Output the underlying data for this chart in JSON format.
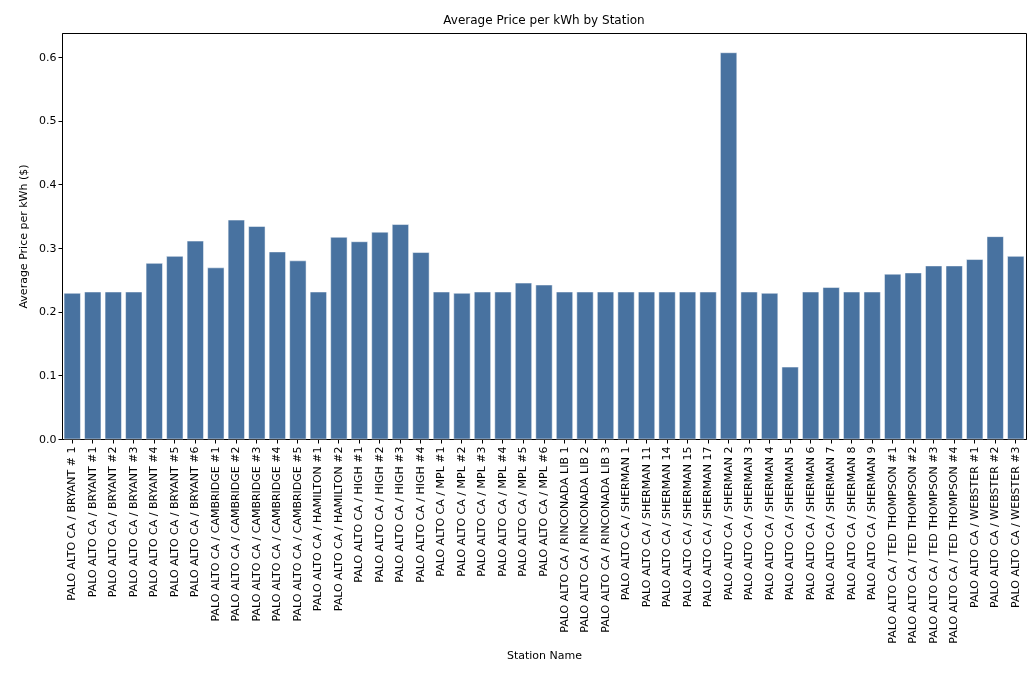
{
  "chart_data": {
    "type": "bar",
    "title": "Average Price per kWh by Station",
    "xlabel": "Station Name",
    "ylabel": "Average Price per kWh ($)",
    "categories": [
      "PALO ALTO CA / BRYANT # 1",
      "PALO ALTO CA / BRYANT #1",
      "PALO ALTO CA / BRYANT #2",
      "PALO ALTO CA / BRYANT #3",
      "PALO ALTO CA / BRYANT #4",
      "PALO ALTO CA / BRYANT #5",
      "PALO ALTO CA / BRYANT #6",
      "PALO ALTO CA / CAMBRIDGE #1",
      "PALO ALTO CA / CAMBRIDGE #2",
      "PALO ALTO CA / CAMBRIDGE #3",
      "PALO ALTO CA / CAMBRIDGE #4",
      "PALO ALTO CA / CAMBRIDGE #5",
      "PALO ALTO CA / HAMILTON #1",
      "PALO ALTO CA / HAMILTON #2",
      "PALO ALTO CA / HIGH #1",
      "PALO ALTO CA / HIGH #2",
      "PALO ALTO CA / HIGH #3",
      "PALO ALTO CA / HIGH #4",
      "PALO ALTO CA / MPL #1",
      "PALO ALTO CA / MPL #2",
      "PALO ALTO CA / MPL #3",
      "PALO ALTO CA / MPL #4",
      "PALO ALTO CA / MPL #5",
      "PALO ALTO CA / MPL #6",
      "PALO ALTO CA / RINCONADA LIB 1",
      "PALO ALTO CA / RINCONADA LIB 2",
      "PALO ALTO CA / RINCONADA LIB 3",
      "PALO ALTO CA / SHERMAN 1",
      "PALO ALTO CA / SHERMAN 11",
      "PALO ALTO CA / SHERMAN 14",
      "PALO ALTO CA / SHERMAN 15",
      "PALO ALTO CA / SHERMAN 17",
      "PALO ALTO CA / SHERMAN 2",
      "PALO ALTO CA / SHERMAN 3",
      "PALO ALTO CA / SHERMAN 4",
      "PALO ALTO CA / SHERMAN 5",
      "PALO ALTO CA / SHERMAN 6",
      "PALO ALTO CA / SHERMAN 7",
      "PALO ALTO CA / SHERMAN 8",
      "PALO ALTO CA / SHERMAN 9",
      "PALO ALTO CA / TED THOMPSON #1",
      "PALO ALTO CA / TED THOMPSON #2",
      "PALO ALTO CA / TED THOMPSON #3",
      "PALO ALTO CA / TED THOMPSON #4",
      "PALO ALTO CA / WEBSTER #1",
      "PALO ALTO CA / WEBSTER #2",
      "PALO ALTO CA / WEBSTER #3"
    ],
    "values": [
      0.229,
      0.231,
      0.231,
      0.231,
      0.276,
      0.287,
      0.311,
      0.269,
      0.344,
      0.334,
      0.294,
      0.28,
      0.231,
      0.317,
      0.31,
      0.325,
      0.337,
      0.293,
      0.231,
      0.229,
      0.231,
      0.231,
      0.245,
      0.242,
      0.231,
      0.231,
      0.231,
      0.231,
      0.231,
      0.231,
      0.231,
      0.231,
      0.607,
      0.231,
      0.229,
      0.113,
      0.231,
      0.238,
      0.231,
      0.231,
      0.259,
      0.261,
      0.272,
      0.272,
      0.282,
      0.318,
      0.287
    ],
    "color": "#4872a0",
    "ylim": [
      0,
      0.638
    ],
    "yticks": [
      {
        "value": 0,
        "label": "0.0"
      },
      0.1,
      0.2,
      0.3,
      0.4,
      0.5,
      0.6
    ],
    "grid": false
  }
}
